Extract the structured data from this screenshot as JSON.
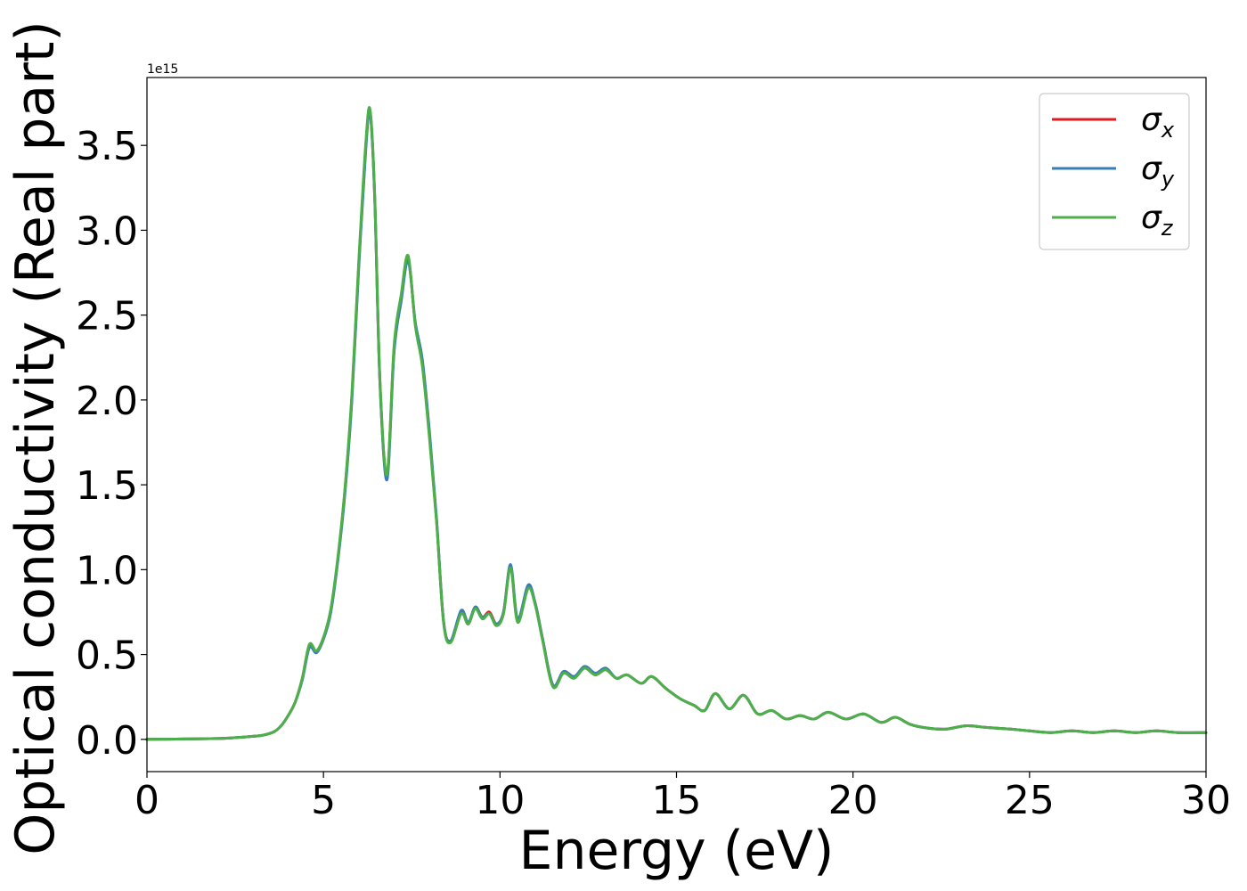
{
  "chart_data": {
    "type": "line",
    "title": "",
    "xlabel": "Energy (eV)",
    "ylabel": "Optical conductivity (Real part)",
    "y_offset_text": "1e15",
    "y_scale_multiplier": 1000000000000000.0,
    "xlim": [
      0,
      30
    ],
    "ylim": [
      -0.19,
      3.9
    ],
    "x_ticks": [
      0,
      5,
      10,
      15,
      20,
      25,
      30
    ],
    "x_tick_labels": [
      "0",
      "5",
      "10",
      "15",
      "20",
      "25",
      "30"
    ],
    "y_ticks": [
      0.0,
      0.5,
      1.0,
      1.5,
      2.0,
      2.5,
      3.0,
      3.5
    ],
    "y_tick_labels": [
      "0.0",
      "0.5",
      "1.0",
      "1.5",
      "2.0",
      "2.5",
      "3.0",
      "3.5"
    ],
    "grid": false,
    "legend_position": "top-right",
    "series": [
      {
        "name": "σx",
        "base": "σ",
        "subscript": "x",
        "color": "#e41a1c",
        "x": [
          0,
          1,
          2,
          2.5,
          3,
          3.3,
          3.6,
          3.8,
          4.0,
          4.2,
          4.4,
          4.6,
          4.8,
          5.0,
          5.2,
          5.4,
          5.6,
          5.8,
          6.0,
          6.2,
          6.32,
          6.45,
          6.6,
          6.8,
          7.0,
          7.2,
          7.4,
          7.6,
          7.8,
          8.0,
          8.2,
          8.4,
          8.6,
          8.9,
          9.1,
          9.3,
          9.5,
          9.7,
          9.9,
          10.1,
          10.3,
          10.5,
          10.8,
          11.0,
          11.2,
          11.5,
          11.8,
          12.1,
          12.4,
          12.7,
          13.0,
          13.3,
          13.6,
          14.0,
          14.3,
          14.7,
          15.1,
          15.5,
          15.8,
          16.1,
          16.5,
          16.9,
          17.3,
          17.7,
          18.1,
          18.5,
          18.9,
          19.3,
          19.8,
          20.3,
          20.8,
          21.2,
          21.6,
          22.0,
          22.6,
          23.2,
          23.8,
          24.5,
          25.0,
          25.6,
          26.2,
          26.8,
          27.4,
          28.0,
          28.6,
          29.2,
          30.0
        ],
        "y": [
          0.0,
          0.002,
          0.005,
          0.01,
          0.018,
          0.025,
          0.045,
          0.08,
          0.14,
          0.22,
          0.36,
          0.55,
          0.52,
          0.6,
          0.75,
          1.05,
          1.45,
          2.0,
          2.8,
          3.5,
          3.7,
          3.2,
          2.1,
          1.55,
          2.3,
          2.6,
          2.83,
          2.45,
          2.22,
          1.8,
          1.3,
          0.7,
          0.58,
          0.75,
          0.68,
          0.78,
          0.72,
          0.75,
          0.68,
          0.75,
          1.02,
          0.7,
          0.9,
          0.8,
          0.6,
          0.32,
          0.4,
          0.37,
          0.42,
          0.38,
          0.41,
          0.36,
          0.38,
          0.33,
          0.37,
          0.3,
          0.24,
          0.2,
          0.17,
          0.27,
          0.18,
          0.26,
          0.15,
          0.17,
          0.12,
          0.14,
          0.12,
          0.16,
          0.12,
          0.15,
          0.1,
          0.13,
          0.09,
          0.07,
          0.06,
          0.08,
          0.07,
          0.06,
          0.05,
          0.04,
          0.05,
          0.04,
          0.05,
          0.04,
          0.05,
          0.04,
          0.04
        ]
      },
      {
        "name": "σy",
        "base": "σ",
        "subscript": "y",
        "color": "#377eb8",
        "x": [
          0,
          1,
          2,
          2.5,
          3,
          3.3,
          3.6,
          3.8,
          4.0,
          4.2,
          4.4,
          4.6,
          4.8,
          5.0,
          5.2,
          5.4,
          5.6,
          5.8,
          6.0,
          6.2,
          6.32,
          6.45,
          6.6,
          6.8,
          7.0,
          7.2,
          7.4,
          7.6,
          7.8,
          8.0,
          8.2,
          8.4,
          8.6,
          8.9,
          9.1,
          9.3,
          9.5,
          9.7,
          9.9,
          10.1,
          10.3,
          10.5,
          10.8,
          11.0,
          11.2,
          11.5,
          11.8,
          12.1,
          12.4,
          12.7,
          13.0,
          13.3,
          13.6,
          14.0,
          14.3,
          14.7,
          15.1,
          15.5,
          15.8,
          16.1,
          16.5,
          16.9,
          17.3,
          17.7,
          18.1,
          18.5,
          18.9,
          19.3,
          19.8,
          20.3,
          20.8,
          21.2,
          21.6,
          22.0,
          22.6,
          23.2,
          23.8,
          24.5,
          25.0,
          25.6,
          26.2,
          26.8,
          27.4,
          28.0,
          28.6,
          29.2,
          30.0
        ],
        "y": [
          0.0,
          0.002,
          0.005,
          0.01,
          0.018,
          0.025,
          0.045,
          0.08,
          0.14,
          0.22,
          0.35,
          0.54,
          0.51,
          0.59,
          0.74,
          1.04,
          1.43,
          1.98,
          2.78,
          3.48,
          3.69,
          3.2,
          2.1,
          1.53,
          2.28,
          2.58,
          2.82,
          2.46,
          2.24,
          1.82,
          1.31,
          0.7,
          0.58,
          0.76,
          0.69,
          0.78,
          0.72,
          0.74,
          0.68,
          0.75,
          1.03,
          0.71,
          0.91,
          0.8,
          0.6,
          0.32,
          0.4,
          0.37,
          0.43,
          0.39,
          0.42,
          0.36,
          0.38,
          0.33,
          0.37,
          0.3,
          0.24,
          0.2,
          0.17,
          0.27,
          0.18,
          0.26,
          0.15,
          0.17,
          0.12,
          0.14,
          0.12,
          0.16,
          0.12,
          0.15,
          0.1,
          0.13,
          0.09,
          0.07,
          0.06,
          0.08,
          0.07,
          0.06,
          0.05,
          0.04,
          0.05,
          0.04,
          0.05,
          0.04,
          0.05,
          0.04,
          0.04
        ]
      },
      {
        "name": "σz",
        "base": "σ",
        "subscript": "z",
        "color": "#4daf4a",
        "x": [
          0,
          1,
          2,
          2.5,
          3,
          3.3,
          3.6,
          3.8,
          4.0,
          4.2,
          4.4,
          4.6,
          4.8,
          5.0,
          5.2,
          5.4,
          5.6,
          5.8,
          6.0,
          6.2,
          6.32,
          6.45,
          6.6,
          6.8,
          7.0,
          7.2,
          7.4,
          7.6,
          7.8,
          8.0,
          8.2,
          8.4,
          8.6,
          8.9,
          9.1,
          9.3,
          9.5,
          9.7,
          9.9,
          10.1,
          10.3,
          10.5,
          10.8,
          11.0,
          11.2,
          11.5,
          11.8,
          12.1,
          12.4,
          12.7,
          13.0,
          13.3,
          13.6,
          14.0,
          14.3,
          14.7,
          15.1,
          15.5,
          15.8,
          16.1,
          16.5,
          16.9,
          17.3,
          17.7,
          18.1,
          18.5,
          18.9,
          19.3,
          19.8,
          20.3,
          20.8,
          21.2,
          21.6,
          22.0,
          22.6,
          23.2,
          23.8,
          24.5,
          25.0,
          25.6,
          26.2,
          26.8,
          27.4,
          28.0,
          28.6,
          29.2,
          30.0
        ],
        "y": [
          0.0,
          0.002,
          0.005,
          0.01,
          0.018,
          0.025,
          0.045,
          0.08,
          0.14,
          0.22,
          0.36,
          0.56,
          0.52,
          0.6,
          0.76,
          1.06,
          1.46,
          2.02,
          2.82,
          3.52,
          3.71,
          3.22,
          2.12,
          1.56,
          2.32,
          2.62,
          2.85,
          2.44,
          2.2,
          1.78,
          1.29,
          0.69,
          0.57,
          0.74,
          0.68,
          0.77,
          0.71,
          0.74,
          0.67,
          0.74,
          1.01,
          0.69,
          0.89,
          0.79,
          0.59,
          0.31,
          0.39,
          0.36,
          0.42,
          0.38,
          0.41,
          0.36,
          0.38,
          0.33,
          0.37,
          0.3,
          0.24,
          0.2,
          0.17,
          0.27,
          0.18,
          0.26,
          0.15,
          0.17,
          0.12,
          0.14,
          0.12,
          0.16,
          0.12,
          0.15,
          0.1,
          0.13,
          0.09,
          0.07,
          0.06,
          0.08,
          0.07,
          0.06,
          0.05,
          0.04,
          0.05,
          0.04,
          0.05,
          0.04,
          0.05,
          0.04,
          0.04
        ]
      }
    ]
  }
}
